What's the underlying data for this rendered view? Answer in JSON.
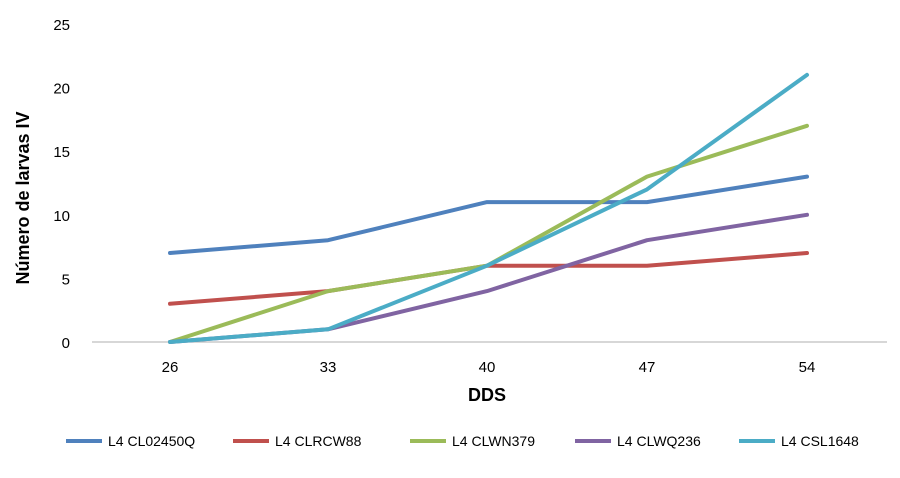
{
  "chart_data": {
    "type": "line",
    "xlabel": "DDS",
    "ylabel": "Número de larvas IV",
    "categories": [
      "26",
      "33",
      "40",
      "47",
      "54"
    ],
    "ylim": [
      0,
      25
    ],
    "yticks": [
      "0",
      "5",
      "10",
      "15",
      "20",
      "25"
    ],
    "grid": false,
    "legend_position": "bottom",
    "series": [
      {
        "name": "L4 CL02450Q",
        "color": "#4F81BD",
        "values": [
          7,
          8,
          11,
          11,
          13
        ]
      },
      {
        "name": "L4 CLRCW88",
        "color": "#C0504D",
        "values": [
          3,
          4,
          6,
          6,
          7
        ]
      },
      {
        "name": "L4 CLWN379",
        "color": "#9BBB59",
        "values": [
          0,
          4,
          6,
          13,
          17
        ]
      },
      {
        "name": "L4 CLWQ236",
        "color": "#8064A2",
        "values": [
          0,
          1,
          4,
          8,
          10
        ]
      },
      {
        "name": "L4 CSL1648",
        "color": "#4BACC6",
        "values": [
          0,
          1,
          6,
          12,
          21
        ]
      }
    ]
  }
}
